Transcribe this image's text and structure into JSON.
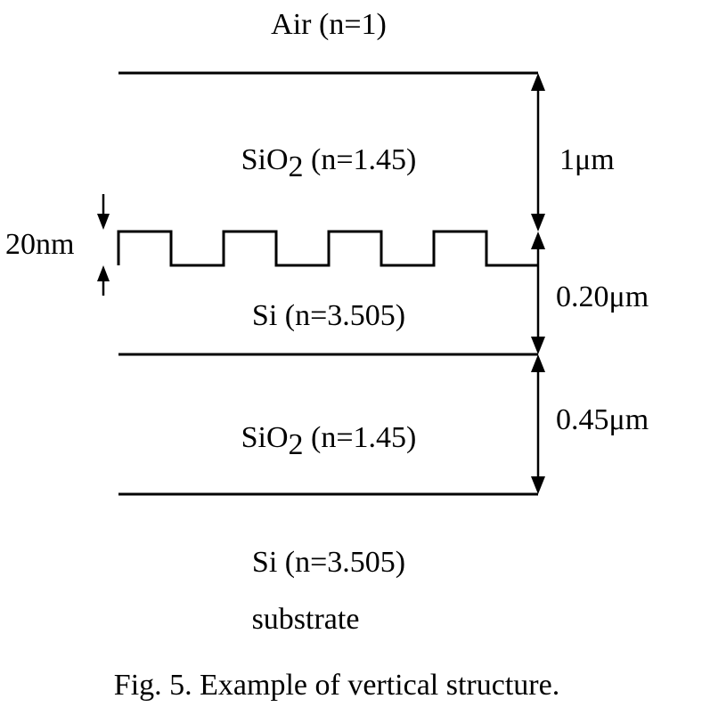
{
  "layers": {
    "top": "Air (n=1)",
    "oxide_top_prefix": "SiO",
    "oxide_top_sub": "2",
    "oxide_top_suffix": " (n=1.45)",
    "si_core": "Si (n=3.505)",
    "oxide_bottom_prefix": "SiO",
    "oxide_bottom_sub": "2",
    "oxide_bottom_suffix": " (n=1.45)",
    "substrate_line1": "Si (n=3.505)",
    "substrate_line2": "substrate"
  },
  "dimensions": {
    "oxide_top_thickness": "1μm",
    "grating_depth": "20nm",
    "core_thickness": "0.20μm",
    "oxide_bottom_thickness": "0.45μm"
  },
  "caption": "Fig. 5. Example of vertical structure."
}
